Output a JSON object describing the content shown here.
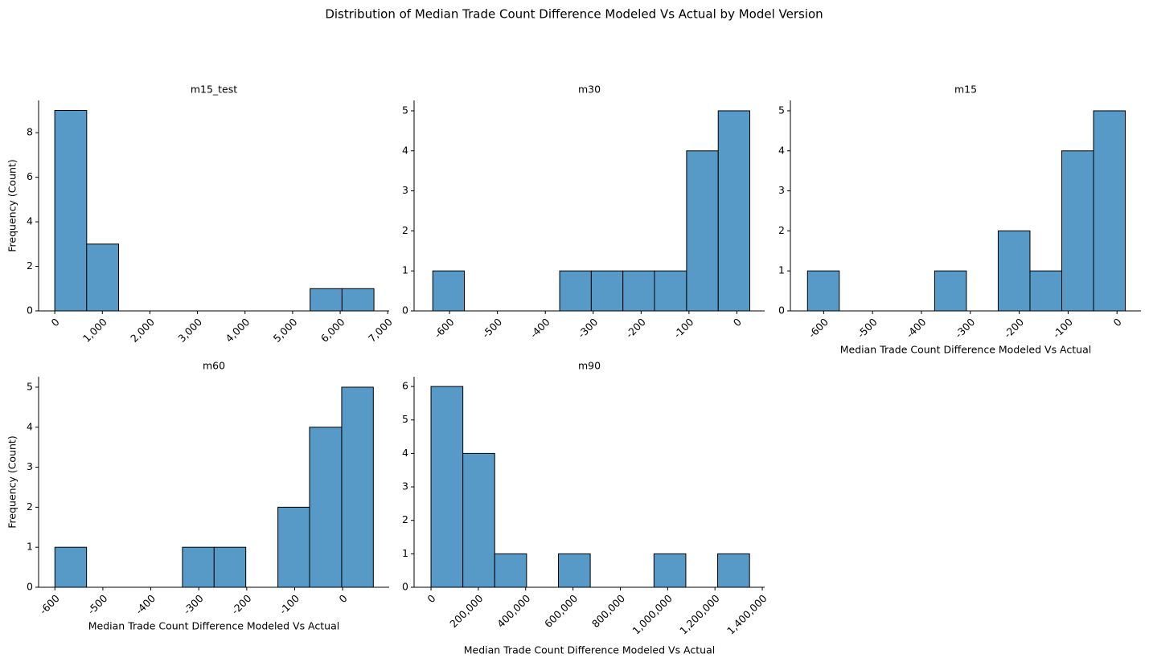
{
  "title": "Distribution of Median Trade Count Difference Modeled Vs Actual by Model Version",
  "chart_data": [
    {
      "type": "histogram",
      "title": "m15_test",
      "ylabel": "Frequency (Count)",
      "color": "#5799c7",
      "bins": [
        0,
        671,
        1342,
        2013,
        2684,
        3355,
        4026,
        4697,
        5368,
        6039,
        6710
      ],
      "values": [
        9,
        3,
        0,
        0,
        0,
        0,
        0,
        0,
        1,
        1
      ],
      "xlim": [
        -340,
        7030
      ],
      "ylim": [
        0,
        9.45
      ],
      "xticks": [
        0,
        {
          "value": 1000,
          "label": "1,000"
        },
        {
          "value": 2000,
          "label": "2,000"
        },
        {
          "value": 3000,
          "label": "3,000"
        },
        {
          "value": 4000,
          "label": "4,000"
        },
        {
          "value": 5000,
          "label": "5,000"
        },
        {
          "value": 6000,
          "label": "6,000"
        },
        {
          "value": 7000,
          "label": "7,000"
        }
      ],
      "yticks": [
        0,
        2,
        4,
        6,
        8
      ]
    },
    {
      "type": "histogram",
      "title": "m30",
      "color": "#5799c7",
      "bins": [
        -635,
        -569,
        -503,
        -436,
        -370,
        -304,
        -238,
        -172,
        -105,
        -39,
        27
      ],
      "values": [
        1,
        0,
        0,
        0,
        1,
        1,
        1,
        1,
        4,
        5
      ],
      "xlim": [
        -674,
        58
      ],
      "ylim": [
        0,
        5.26
      ],
      "xticks": [
        -600,
        -500,
        -400,
        -300,
        -200,
        -100,
        0
      ],
      "yticks": [
        0,
        1,
        2,
        3,
        4,
        5
      ]
    },
    {
      "type": "histogram",
      "title": "m15",
      "xlabel": "Median Trade Count Difference Modeled Vs Actual",
      "color": "#5799c7",
      "bins": [
        -633,
        -568,
        -503,
        -438,
        -373,
        -308,
        -243,
        -178,
        -113,
        -48,
        17
      ],
      "values": [
        1,
        0,
        0,
        0,
        1,
        0,
        2,
        1,
        4,
        5
      ],
      "xlim": [
        -668,
        49
      ],
      "ylim": [
        0,
        5.26
      ],
      "xticks": [
        -600,
        -500,
        -400,
        -300,
        -200,
        -100,
        0
      ],
      "yticks": [
        0,
        1,
        2,
        3,
        4,
        5
      ]
    },
    {
      "type": "histogram",
      "title": "m60",
      "xlabel": "Median Trade Count Difference Modeled Vs Actual",
      "ylabel": "Frequency (Count)",
      "color": "#5799c7",
      "bins": [
        -600,
        -534,
        -467,
        -401,
        -334,
        -268,
        -202,
        -135,
        -69,
        -2,
        64
      ],
      "values": [
        1,
        0,
        0,
        0,
        1,
        1,
        0,
        2,
        4,
        5
      ],
      "xlim": [
        -634,
        97
      ],
      "ylim": [
        0,
        5.26
      ],
      "xticks": [
        -600,
        -500,
        -400,
        -300,
        -200,
        -100,
        0
      ],
      "yticks": [
        0,
        1,
        2,
        3,
        4,
        5
      ]
    },
    {
      "type": "histogram",
      "title": "m90",
      "xlabel": "Median Trade Count Difference Modeled Vs Actual",
      "color": "#5799c7",
      "bins": [
        0,
        134600,
        269200,
        403800,
        538400,
        673000,
        807600,
        942200,
        1076800,
        1211400,
        1346000
      ],
      "values": [
        6,
        4,
        1,
        0,
        1,
        0,
        0,
        1,
        0,
        1
      ],
      "xlim": [
        -71500,
        1410000
      ],
      "ylim": [
        0,
        6.29
      ],
      "xticks": [
        0,
        {
          "value": 200000,
          "label": "200,000"
        },
        {
          "value": 400000,
          "label": "400,000"
        },
        {
          "value": 600000,
          "label": "600,000"
        },
        {
          "value": 800000,
          "label": "800,000"
        },
        {
          "value": 1000000,
          "label": "1,000,000"
        },
        {
          "value": 1200000,
          "label": "1,200,000"
        },
        {
          "value": 1400000,
          "label": "1,400,000"
        }
      ],
      "yticks": [
        0,
        1,
        2,
        3,
        4,
        5,
        6
      ]
    }
  ]
}
